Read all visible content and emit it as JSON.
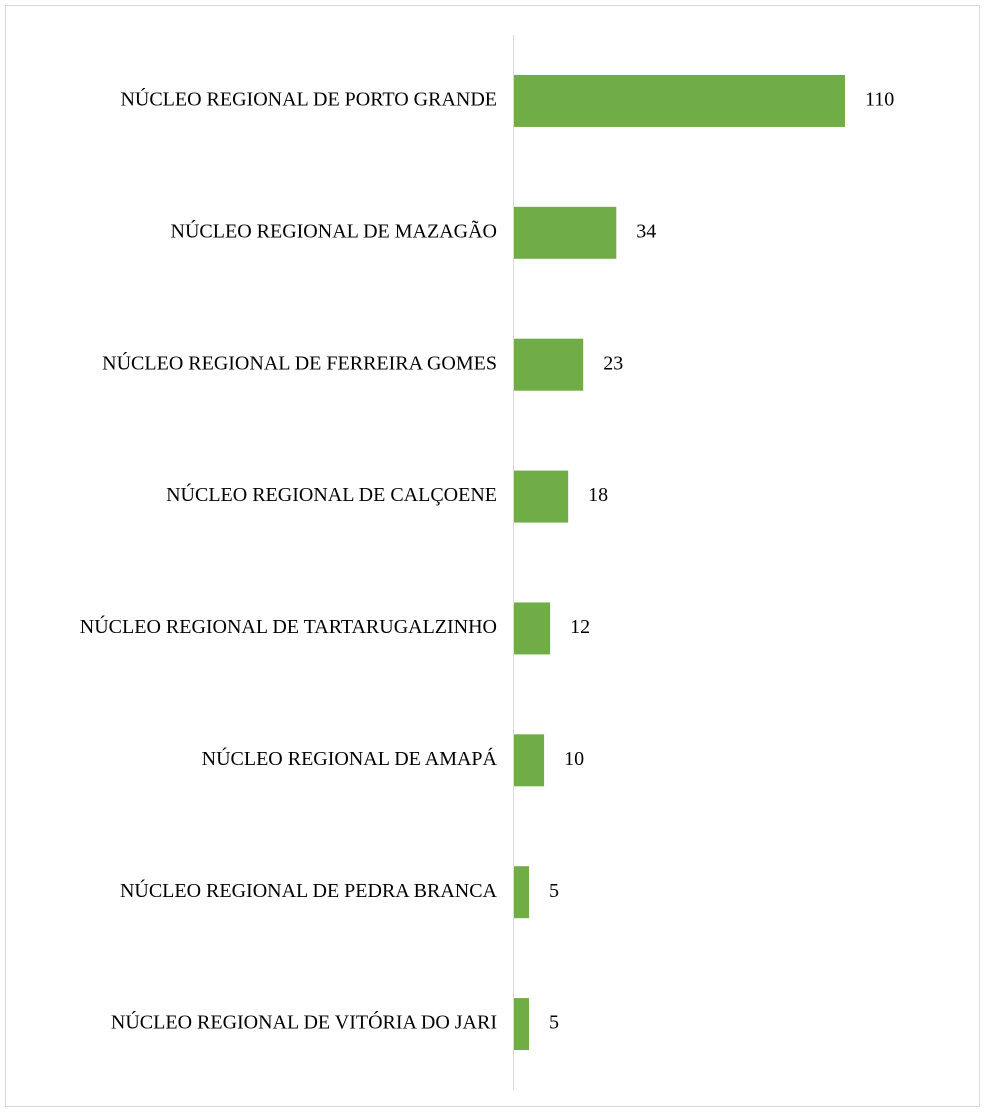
{
  "chart_data": {
    "type": "bar",
    "orientation": "horizontal",
    "categories": [
      "NÚCLEO REGIONAL DE PORTO GRANDE",
      "NÚCLEO REGIONAL DE MAZAGÃO",
      "NÚCLEO REGIONAL DE FERREIRA GOMES",
      "NÚCLEO REGIONAL DE CALÇOENE",
      "NÚCLEO REGIONAL DE TARTARUGALZINHO",
      "NÚCLEO REGIONAL DE AMAPÁ",
      "NÚCLEO REGIONAL DE PEDRA BRANCA",
      "NÚCLEO REGIONAL DE VITÓRIA DO JARI"
    ],
    "values": [
      110,
      34,
      23,
      18,
      12,
      10,
      5,
      5
    ],
    "color": "#70ad47",
    "grid": false
  }
}
